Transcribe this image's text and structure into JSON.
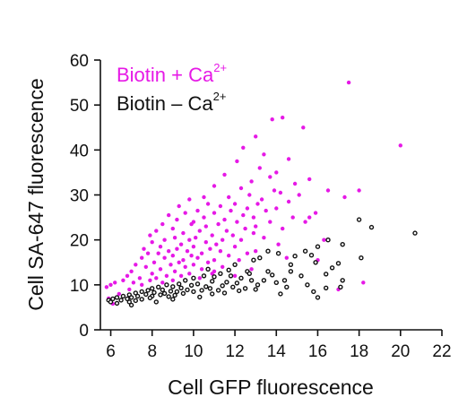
{
  "chart_data": {
    "type": "scatter",
    "xlabel": "Cell GFP fluorescence",
    "ylabel": "Cell SA-647 fluorescence",
    "xlim": [
      5.5,
      22
    ],
    "ylim": [
      0,
      60
    ],
    "xticks": [
      6,
      8,
      10,
      12,
      14,
      16,
      18,
      20,
      22
    ],
    "yticks": [
      0,
      10,
      20,
      30,
      40,
      50,
      60
    ],
    "grid": false,
    "legend_placement": "top-left",
    "series": [
      {
        "name": "Biotin + Ca",
        "name_superscript": "2+",
        "color": "#e619e6",
        "marker": "filled-circle",
        "points": [
          [
            17.5,
            55.0
          ],
          [
            20.0,
            41.0
          ],
          [
            14.3,
            47.2
          ],
          [
            13.8,
            46.8
          ],
          [
            15.3,
            45.0
          ],
          [
            13.0,
            43.0
          ],
          [
            12.4,
            40.5
          ],
          [
            13.4,
            39.0
          ],
          [
            14.6,
            38.0
          ],
          [
            12.1,
            37.5
          ],
          [
            13.2,
            36.0
          ],
          [
            14.0,
            35.0
          ],
          [
            11.5,
            34.5
          ],
          [
            13.7,
            34.0
          ],
          [
            15.6,
            33.5
          ],
          [
            12.8,
            33.0
          ],
          [
            14.9,
            32.5
          ],
          [
            11.0,
            32.0
          ],
          [
            12.3,
            31.5
          ],
          [
            13.9,
            31.0
          ],
          [
            16.5,
            31.0
          ],
          [
            17.3,
            29.5
          ],
          [
            18.0,
            31.0
          ],
          [
            14.2,
            30.5
          ],
          [
            15.1,
            30.0
          ],
          [
            12.7,
            30.0
          ],
          [
            10.5,
            29.5
          ],
          [
            11.7,
            29.5
          ],
          [
            9.8,
            29.0
          ],
          [
            13.3,
            29.0
          ],
          [
            14.6,
            28.5
          ],
          [
            12.0,
            28.0
          ],
          [
            10.7,
            28.0
          ],
          [
            13.1,
            28.0
          ],
          [
            9.3,
            27.5
          ],
          [
            11.3,
            27.5
          ],
          [
            12.6,
            27.0
          ],
          [
            14.0,
            27.0
          ],
          [
            10.2,
            26.5
          ],
          [
            11.8,
            26.5
          ],
          [
            13.5,
            26.5
          ],
          [
            15.9,
            26.0
          ],
          [
            9.6,
            26.0
          ],
          [
            11.0,
            26.0
          ],
          [
            12.4,
            25.5
          ],
          [
            8.8,
            25.5
          ],
          [
            10.5,
            25.0
          ],
          [
            12.9,
            25.0
          ],
          [
            14.8,
            25.0
          ],
          [
            9.2,
            24.5
          ],
          [
            11.5,
            24.5
          ],
          [
            13.7,
            24.0
          ],
          [
            10.0,
            24.0
          ],
          [
            12.1,
            24.0
          ],
          [
            15.4,
            24.0
          ],
          [
            8.5,
            23.5
          ],
          [
            9.9,
            23.5
          ],
          [
            11.2,
            23.5
          ],
          [
            13.0,
            23.0
          ],
          [
            10.6,
            23.0
          ],
          [
            9.0,
            22.5
          ],
          [
            12.5,
            22.5
          ],
          [
            14.3,
            22.5
          ],
          [
            8.2,
            22.0
          ],
          [
            10.3,
            22.0
          ],
          [
            11.6,
            22.0
          ],
          [
            9.5,
            21.5
          ],
          [
            12.9,
            21.5
          ],
          [
            7.9,
            21.0
          ],
          [
            10.9,
            21.0
          ],
          [
            11.9,
            21.0
          ],
          [
            9.1,
            20.5
          ],
          [
            10.1,
            20.5
          ],
          [
            13.4,
            20.5
          ],
          [
            8.6,
            20.0
          ],
          [
            9.8,
            20.0
          ],
          [
            11.4,
            20.0
          ],
          [
            12.3,
            20.0
          ],
          [
            8.0,
            19.5
          ],
          [
            10.6,
            19.5
          ],
          [
            9.4,
            19.0
          ],
          [
            11.1,
            19.0
          ],
          [
            14.1,
            19.0
          ],
          [
            8.4,
            18.5
          ],
          [
            10.0,
            18.5
          ],
          [
            12.0,
            18.5
          ],
          [
            7.6,
            18.0
          ],
          [
            9.2,
            18.0
          ],
          [
            10.8,
            18.0
          ],
          [
            8.8,
            17.5
          ],
          [
            9.7,
            17.5
          ],
          [
            11.3,
            17.5
          ],
          [
            13.0,
            17.5
          ],
          [
            7.8,
            17.0
          ],
          [
            8.3,
            17.0
          ],
          [
            10.4,
            17.0
          ],
          [
            12.6,
            17.0
          ],
          [
            9.0,
            16.5
          ],
          [
            9.9,
            16.5
          ],
          [
            11.7,
            16.5
          ],
          [
            7.5,
            16.0
          ],
          [
            8.6,
            16.0
          ],
          [
            10.2,
            16.0
          ],
          [
            14.5,
            16.0
          ],
          [
            9.5,
            15.5
          ],
          [
            11.0,
            15.5
          ],
          [
            12.2,
            15.5
          ],
          [
            8.1,
            15.0
          ],
          [
            9.3,
            15.0
          ],
          [
            10.7,
            15.0
          ],
          [
            7.2,
            14.5
          ],
          [
            8.9,
            14.5
          ],
          [
            10.0,
            14.5
          ],
          [
            11.4,
            14.0
          ],
          [
            7.7,
            14.0
          ],
          [
            9.6,
            14.0
          ],
          [
            8.4,
            13.5
          ],
          [
            10.4,
            13.5
          ],
          [
            12.8,
            13.5
          ],
          [
            7.0,
            13.0
          ],
          [
            9.1,
            13.0
          ],
          [
            11.0,
            13.0
          ],
          [
            8.0,
            12.5
          ],
          [
            9.8,
            12.5
          ],
          [
            10.9,
            12.5
          ],
          [
            6.8,
            12.0
          ],
          [
            8.7,
            12.0
          ],
          [
            9.4,
            12.0
          ],
          [
            12.0,
            12.0
          ],
          [
            7.4,
            11.5
          ],
          [
            8.2,
            11.5
          ],
          [
            10.3,
            11.5
          ],
          [
            6.6,
            11.0
          ],
          [
            7.9,
            11.0
          ],
          [
            9.0,
            11.0
          ],
          [
            6.2,
            10.5
          ],
          [
            7.1,
            10.5
          ],
          [
            8.5,
            10.5
          ],
          [
            6.0,
            10.0
          ],
          [
            7.5,
            10.0
          ],
          [
            5.8,
            9.5
          ],
          [
            6.9,
            9.0
          ],
          [
            6.4,
            8.0
          ],
          [
            5.9,
            7.0
          ],
          [
            6.1,
            5.8
          ],
          [
            18.2,
            10.5
          ],
          [
            17.0,
            9.0
          ],
          [
            16.0,
            15.5
          ],
          [
            15.6,
            25.0
          ],
          [
            16.3,
            20.0
          ]
        ]
      },
      {
        "name": "Biotin – Ca",
        "name_superscript": "2+",
        "color": "#111111",
        "marker": "open-circle",
        "points": [
          [
            20.7,
            21.5
          ],
          [
            18.0,
            24.5
          ],
          [
            18.6,
            22.8
          ],
          [
            16.5,
            20.0
          ],
          [
            17.2,
            19.0
          ],
          [
            16.0,
            18.5
          ],
          [
            15.4,
            17.5
          ],
          [
            14.1,
            17.0
          ],
          [
            13.6,
            17.5
          ],
          [
            15.9,
            15.0
          ],
          [
            17.0,
            14.8
          ],
          [
            18.1,
            16.0
          ],
          [
            15.7,
            16.6
          ],
          [
            14.9,
            16.4
          ],
          [
            14.7,
            14.5
          ],
          [
            13.2,
            16.0
          ],
          [
            12.9,
            15.5
          ],
          [
            16.4,
            12.4
          ],
          [
            17.2,
            11.0
          ],
          [
            15.5,
            10.0
          ],
          [
            14.7,
            13.0
          ],
          [
            13.6,
            13.0
          ],
          [
            14.4,
            11.0
          ],
          [
            12.0,
            14.5
          ],
          [
            12.6,
            13.0
          ],
          [
            11.8,
            12.0
          ],
          [
            12.3,
            11.5
          ],
          [
            11.3,
            12.5
          ],
          [
            11.0,
            11.8
          ],
          [
            12.8,
            11.0
          ],
          [
            13.4,
            11.0
          ],
          [
            10.5,
            12.0
          ],
          [
            10.0,
            11.5
          ],
          [
            9.6,
            11.0
          ],
          [
            10.9,
            10.8
          ],
          [
            11.6,
            10.6
          ],
          [
            12.1,
            10.4
          ],
          [
            13.1,
            10.0
          ],
          [
            14.0,
            10.5
          ],
          [
            10.2,
            10.2
          ],
          [
            9.3,
            10.2
          ],
          [
            9.9,
            9.9
          ],
          [
            11.4,
            9.8
          ],
          [
            8.7,
            10.0
          ],
          [
            9.0,
            9.6
          ],
          [
            8.3,
            9.5
          ],
          [
            10.6,
            9.6
          ],
          [
            11.9,
            9.5
          ],
          [
            12.5,
            9.2
          ],
          [
            8.0,
            9.2
          ],
          [
            9.4,
            9.3
          ],
          [
            10.8,
            9.2
          ],
          [
            7.8,
            8.8
          ],
          [
            8.5,
            8.9
          ],
          [
            9.7,
            8.9
          ],
          [
            10.4,
            8.8
          ],
          [
            11.2,
            8.8
          ],
          [
            7.5,
            8.5
          ],
          [
            8.9,
            8.6
          ],
          [
            9.2,
            8.5
          ],
          [
            10.0,
            8.5
          ],
          [
            7.2,
            8.2
          ],
          [
            8.1,
            8.3
          ],
          [
            8.6,
            8.1
          ],
          [
            9.5,
            8.1
          ],
          [
            10.9,
            8.0
          ],
          [
            6.9,
            7.8
          ],
          [
            7.7,
            7.9
          ],
          [
            8.4,
            7.8
          ],
          [
            9.1,
            7.7
          ],
          [
            6.6,
            7.5
          ],
          [
            7.3,
            7.5
          ],
          [
            8.0,
            7.5
          ],
          [
            8.8,
            7.4
          ],
          [
            6.3,
            7.2
          ],
          [
            7.0,
            7.2
          ],
          [
            7.9,
            7.1
          ],
          [
            6.1,
            6.9
          ],
          [
            6.8,
            6.9
          ],
          [
            7.5,
            6.8
          ],
          [
            5.9,
            6.6
          ],
          [
            6.5,
            6.6
          ],
          [
            7.2,
            6.5
          ],
          [
            6.0,
            6.2
          ],
          [
            6.9,
            6.2
          ],
          [
            6.3,
            5.9
          ],
          [
            7.0,
            5.5
          ],
          [
            8.2,
            6.2
          ],
          [
            9.0,
            6.8
          ],
          [
            10.3,
            7.3
          ],
          [
            11.5,
            8.2
          ],
          [
            12.2,
            8.7
          ],
          [
            13.0,
            9.0
          ],
          [
            14.5,
            9.5
          ],
          [
            15.8,
            8.5
          ],
          [
            17.1,
            9.5
          ],
          [
            14.2,
            8.0
          ],
          [
            16.0,
            7.2
          ],
          [
            13.8,
            12.2
          ],
          [
            12.7,
            12.5
          ],
          [
            11.7,
            13.3
          ],
          [
            10.7,
            13.5
          ],
          [
            15.2,
            12.0
          ],
          [
            16.7,
            13.8
          ],
          [
            16.4,
            9.3
          ]
        ]
      }
    ]
  }
}
